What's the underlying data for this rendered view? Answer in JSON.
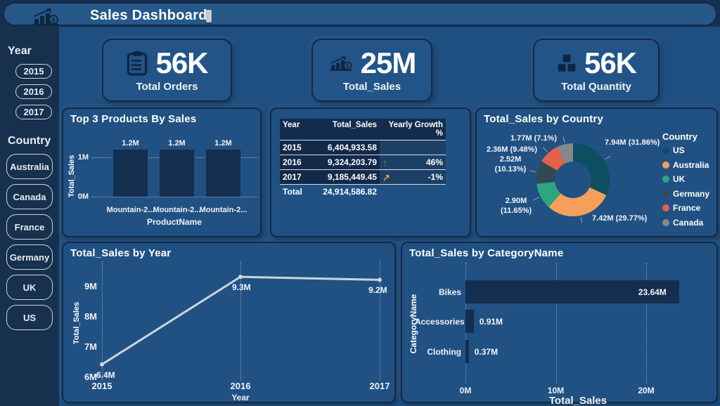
{
  "header": {
    "title": "Sales Dashboard"
  },
  "sidebar": {
    "year_label": "Year",
    "years": [
      "2015",
      "2016",
      "2017"
    ],
    "country_label": "Country",
    "countries": [
      "Australia",
      "Canada",
      "France",
      "Germany",
      "UK",
      "US"
    ]
  },
  "kpis": [
    {
      "icon": "clipboard-icon",
      "value": "56K",
      "label": "Total Orders"
    },
    {
      "icon": "sales-chart-icon",
      "value": "25M",
      "label": "Total_Sales"
    },
    {
      "icon": "boxes-icon",
      "value": "56K",
      "label": "Total Quantity"
    }
  ],
  "colors": {
    "page_dark": "#16304e",
    "main_bg": "#1f4f80",
    "panel_bg": "#215183",
    "dark_border": "#12294a",
    "bar_fill": "#142e50",
    "line_stroke": "#c9d5df",
    "growth_up": "#3ab04c",
    "growth_flat": "#f0a22e"
  },
  "chart_data": [
    {
      "id": "top3",
      "type": "bar",
      "title": "Top 3 Products By Sales",
      "categories": [
        "Mountain-2...",
        "Mountain-2...",
        "Mountain-2..."
      ],
      "values": [
        1.2,
        1.2,
        1.2
      ],
      "value_labels": [
        "1.2M",
        "1.2M",
        "1.2M"
      ],
      "xlabel": "ProductName",
      "ylabel": "Total_Sales",
      "yticks": [
        {
          "label": "1M",
          "value": 1
        },
        {
          "label": "0M",
          "value": 0
        }
      ],
      "ylim": [
        0,
        1.2
      ],
      "grid": "dotted-horizontal"
    },
    {
      "id": "growth-table",
      "type": "table",
      "columns": [
        "Year",
        "Total_Sales",
        "Yearly Growth %"
      ],
      "rows": [
        {
          "year": "2015",
          "total_sales": "6,404,933.58",
          "growth": "",
          "arrow": null
        },
        {
          "year": "2016",
          "total_sales": "9,324,203.79",
          "growth": "46%",
          "arrow": "up",
          "arrow_color": "#3ab04c"
        },
        {
          "year": "2017",
          "total_sales": "9,185,449.45",
          "growth": "-1%",
          "arrow": "up-right",
          "arrow_color": "#f0a22e"
        }
      ],
      "total_row": {
        "year": "Total",
        "total_sales": "24,914,586.82",
        "growth": ""
      }
    },
    {
      "id": "donut",
      "type": "pie",
      "title": "Total_Sales by Country",
      "legend_title": "Country",
      "legend_position": "right",
      "series": [
        {
          "name": "US",
          "value_m": 7.94,
          "pct": 31.86,
          "label": "7.94M (31.86%)",
          "color": "#0d4e5f"
        },
        {
          "name": "Australia",
          "value_m": 7.42,
          "pct": 29.77,
          "label": "7.42M (29.77%)",
          "color": "#f5a05a"
        },
        {
          "name": "UK",
          "value_m": 2.9,
          "pct": 11.65,
          "label": "2.90M (11.65%)",
          "color": "#2da57e"
        },
        {
          "name": "Germany",
          "value_m": 2.52,
          "pct": 10.13,
          "label": "2.52M (10.13%)",
          "color": "#2f4a53"
        },
        {
          "name": "France",
          "value_m": 2.36,
          "pct": 9.48,
          "label": "2.36M (9.48%)",
          "color": "#e4604b"
        },
        {
          "name": "Canada",
          "value_m": 1.77,
          "pct": 7.1,
          "label": "1.77M (7.1%)",
          "color": "#84888b"
        }
      ]
    },
    {
      "id": "sales-by-year",
      "type": "line",
      "title": "Total_Sales by Year",
      "x": [
        "2015",
        "2016",
        "2017"
      ],
      "values": [
        6.4,
        9.3,
        9.2
      ],
      "value_labels": [
        "6.4M",
        "9.3M",
        "9.2M"
      ],
      "xlabel": "Year",
      "ylabel": "Total_Sales",
      "yticks": [
        {
          "label": "9M",
          "value": 9
        },
        {
          "label": "8M",
          "value": 8
        },
        {
          "label": "7M",
          "value": 7
        },
        {
          "label": "6M",
          "value": 6
        }
      ],
      "ylim": [
        6,
        9.5
      ],
      "grid": "dotted-vertical"
    },
    {
      "id": "sales-by-category",
      "type": "bar",
      "orientation": "horizontal",
      "title": "Total_Sales by CategoryName",
      "categories": [
        "Bikes",
        "Accessories",
        "Clothing"
      ],
      "values": [
        23.64,
        0.91,
        0.37
      ],
      "value_labels": [
        "23.64M",
        "0.91M",
        "0.37M"
      ],
      "xlabel": "Total_Sales",
      "ylabel": "CategoryName",
      "xticks": [
        {
          "label": "0M",
          "value": 0
        },
        {
          "label": "10M",
          "value": 10
        },
        {
          "label": "20M",
          "value": 20
        }
      ],
      "xlim": [
        0,
        24
      ],
      "grid": "dotted-vertical"
    }
  ]
}
